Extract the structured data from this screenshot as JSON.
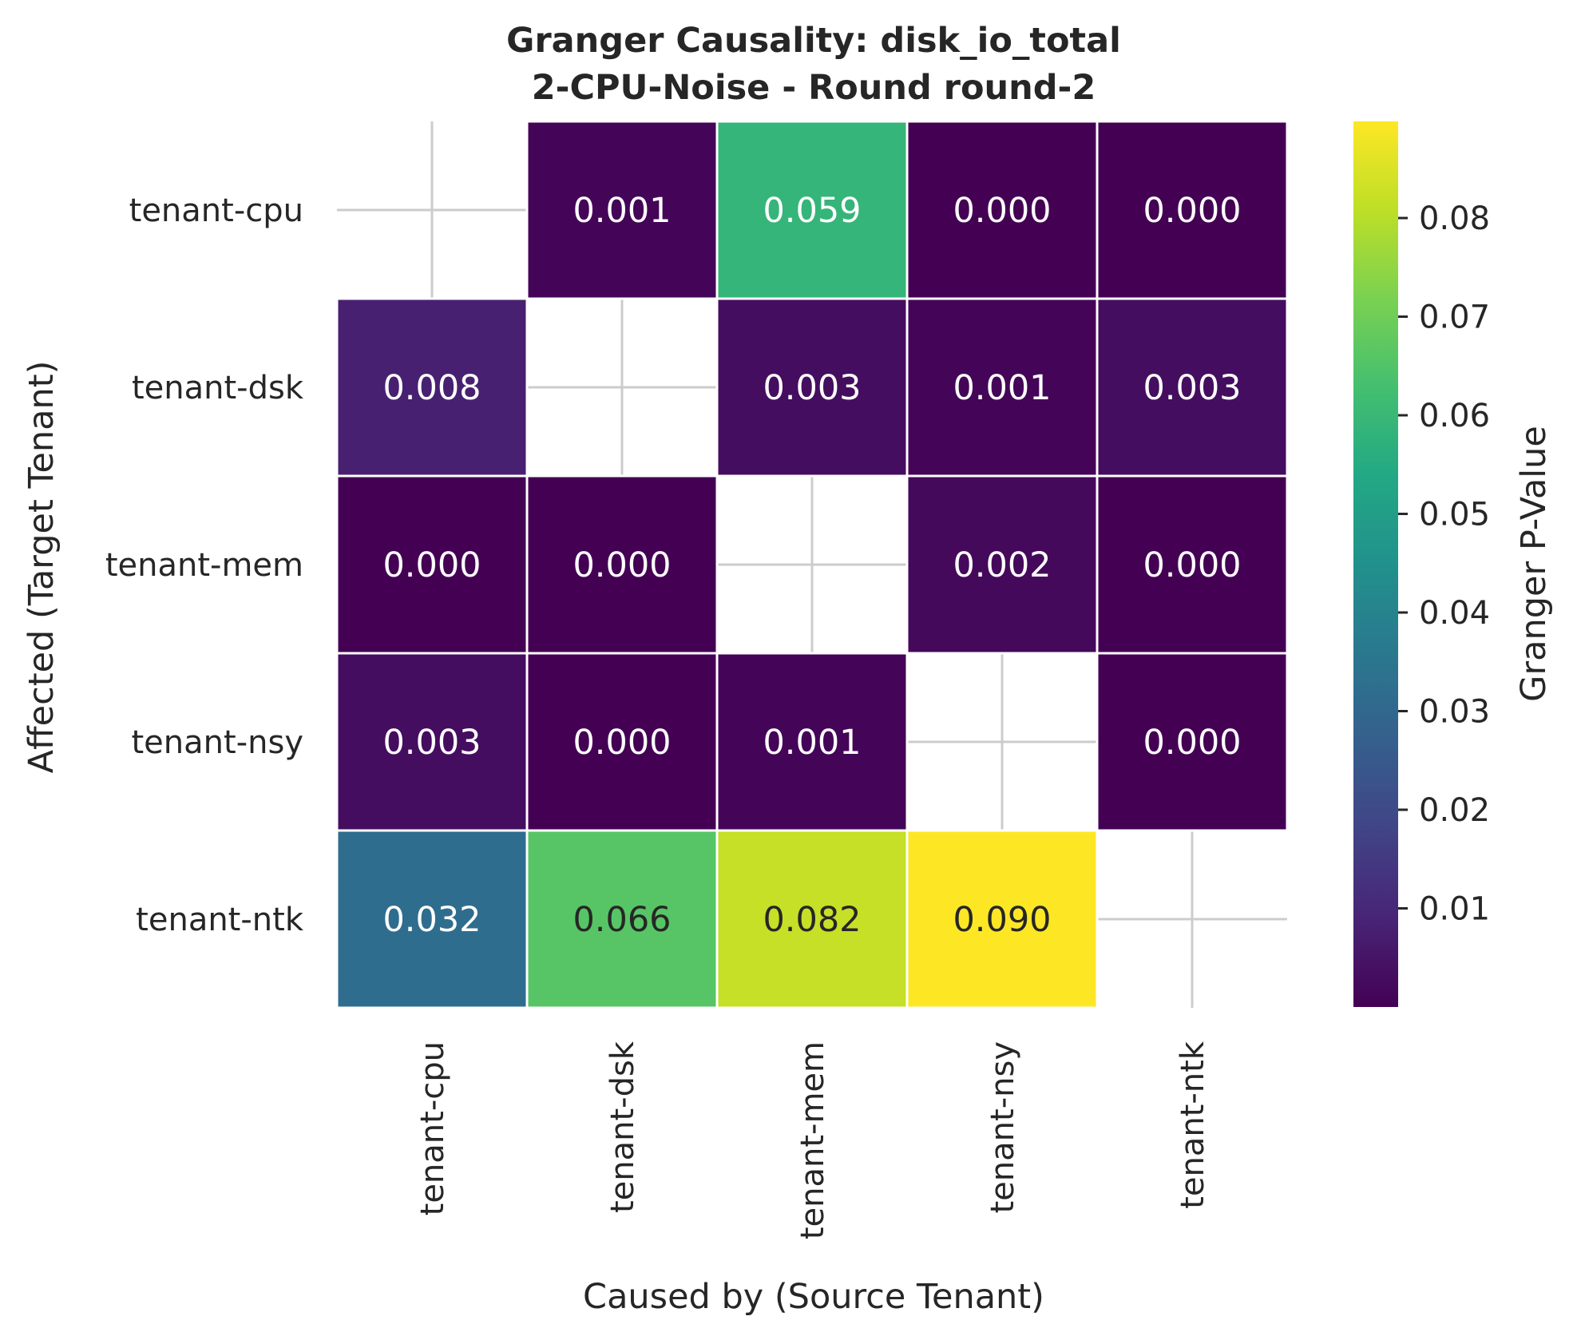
{
  "chart_data": {
    "type": "heatmap",
    "title": "Granger Causality: disk_io_total",
    "subtitle": "2-CPU-Noise - Round round-2",
    "xlabel": "Caused by (Source Tenant)",
    "ylabel": "Affected (Target Tenant)",
    "x_categories": [
      "tenant-cpu",
      "tenant-dsk",
      "tenant-mem",
      "tenant-nsy",
      "tenant-ntk"
    ],
    "y_categories": [
      "tenant-cpu",
      "tenant-dsk",
      "tenant-mem",
      "tenant-nsy",
      "tenant-ntk"
    ],
    "values": [
      [
        null,
        0.001,
        0.059,
        0.0,
        0.0
      ],
      [
        0.008,
        null,
        0.003,
        0.001,
        0.003
      ],
      [
        0.0,
        0.0,
        null,
        0.002,
        0.0
      ],
      [
        0.003,
        0.0,
        0.001,
        null,
        0.0
      ],
      [
        0.032,
        0.066,
        0.082,
        0.09,
        null
      ]
    ],
    "cell_labels": [
      [
        "",
        "0.001",
        "0.059",
        "0.000",
        "0.000"
      ],
      [
        "0.008",
        "",
        "0.003",
        "0.001",
        "0.003"
      ],
      [
        "0.000",
        "0.000",
        "",
        "0.002",
        "0.000"
      ],
      [
        "0.003",
        "0.000",
        "0.001",
        "",
        "0.000"
      ],
      [
        "0.032",
        "0.066",
        "0.082",
        "0.090",
        ""
      ]
    ],
    "colorscale": "viridis",
    "color_range": [
      0.0,
      0.0898
    ],
    "colorbar": {
      "label": "Granger P-Value",
      "ticks": [
        0.01,
        0.02,
        0.03,
        0.04,
        0.05,
        0.06,
        0.07,
        0.08
      ],
      "tick_labels": [
        "0.01",
        "0.02",
        "0.03",
        "0.04",
        "0.05",
        "0.06",
        "0.07",
        "0.08"
      ]
    },
    "grid": true
  }
}
